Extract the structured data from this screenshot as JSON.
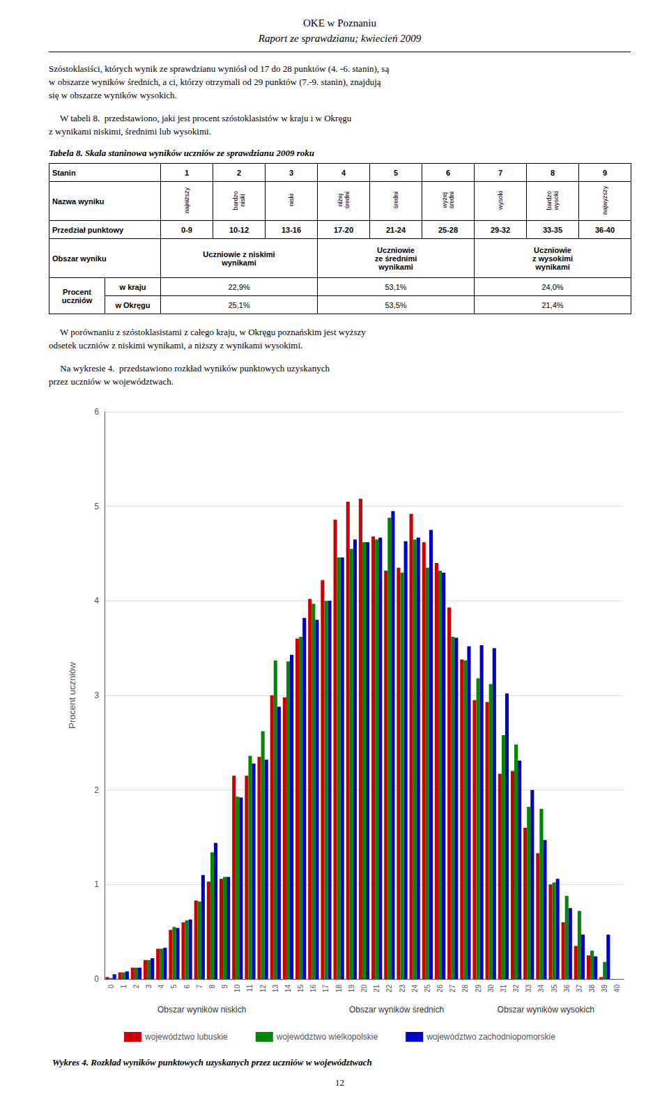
{
  "header": [
    "OKE w Poznaniu",
    "Raport ze sprawdzianu; kwiecień 2009"
  ],
  "paragraphs_before_table": [
    [
      "Szóstoklasiści, których wynik ze sprawdzianu wyniósł od 17 do 28 punktów (4. -6. stanin), są",
      "w obszarze wyników średnich, a ci, którzy otrzymali od 29 punktów (7.-9. stanin), znajdują",
      "się w obszarze wyników wysokich."
    ],
    [
      "     W tabeli 8.  przedstawiono, jaki jest procent szóstoklasistów w kraju i w Okręgu",
      "z wynikami niskimi, średnimi lub wysokimi."
    ]
  ],
  "table": {
    "title": "Tabela 8. Skala staninowa wyników uczniów ze sprawdzianu 2009 roku",
    "row_headers": [
      "Stanin",
      "Nazwa wyniku",
      "Przedział punktowy",
      "Obszar wyniku",
      "Procent\nuczniów"
    ],
    "stanin": [
      1,
      2,
      3,
      4,
      5,
      6,
      7,
      8,
      9
    ],
    "names": [
      "najniższy",
      "bardzo\nniski",
      "niski",
      "niżej\nśredni",
      "średni",
      "wyżej\nśredni",
      "wysoki",
      "bardzo\nwysoki",
      "najwyższy"
    ],
    "ranges": [
      "0-9",
      "10-12",
      "13-16",
      "17-20",
      "21-24",
      "25-28",
      "29-32",
      "33-35",
      "36-40"
    ],
    "areas": [
      "Uczniowie z niskimi\nwynikami",
      "Uczniowie\nze średnimi\nwynikami",
      "Uczniowie\nz wysokimi\nwynikami"
    ],
    "percent_rows": [
      {
        "label": "w kraju",
        "values": [
          "22,9%",
          "53,1%",
          "24,0%"
        ]
      },
      {
        "label": "w Okręgu",
        "values": [
          "25,1%",
          "53,5%",
          "21,4%"
        ]
      }
    ]
  },
  "paragraphs_after_table": [
    [
      "     W porównaniu z szóstoklasistami z całego kraju, w Okręgu poznańskim jest wyższy",
      "odsetek uczniów z niskimi wynikami, a niższy z wynikami wysokimi."
    ],
    [
      "     Na wykresie 4.  przedstawiono rozkład wyników punktowych uzyskanych",
      "przez uczniów w województwach."
    ]
  ],
  "page_number": "12",
  "chart_data": {
    "type": "bar",
    "title": "Wykres 4. Rozkład wyników punktowych uzyskanych przez uczniów w województwach",
    "y_label": "Procent uczniów",
    "annotations": [
      "Obszar wyników niskich",
      "Obszar wyników średnich",
      "Obszar wyników wysokich"
    ],
    "categories": [
      "0",
      "1",
      "2",
      "3",
      "4",
      "5",
      "6",
      "7",
      "8",
      "9",
      "10",
      "11",
      "12",
      "13",
      "14",
      "15",
      "16",
      "17",
      "18",
      "19",
      "20",
      "21",
      "22",
      "23",
      "24",
      "25",
      "26",
      "27",
      "28",
      "29",
      "30",
      "31",
      "32",
      "33",
      "34",
      "35",
      "36",
      "37",
      "38",
      "39",
      "40"
    ],
    "series": [
      {
        "name": "województwo lubuskie",
        "color": "#CC0000",
        "values": [
          0.02,
          0.07,
          0.12,
          0.2,
          0.32,
          0.52,
          0.6,
          0.83,
          1.03,
          1.06,
          2.15,
          2.15,
          2.35,
          3.0,
          2.98,
          3.6,
          4.02,
          4.22,
          4.86,
          5.05,
          5.08,
          4.68,
          4.32,
          4.35,
          4.92,
          4.62,
          4.4,
          3.93,
          3.38,
          2.95,
          2.93,
          2.17,
          2.2,
          1.6,
          1.33,
          1.0,
          0.6,
          0.35,
          0.25,
          0.02,
          0.0
        ]
      },
      {
        "name": "województwo wielkopolskie",
        "color": "#008800",
        "values": [
          0.01,
          0.07,
          0.12,
          0.2,
          0.32,
          0.55,
          0.62,
          0.82,
          1.34,
          1.08,
          1.93,
          2.36,
          2.62,
          3.37,
          3.36,
          3.62,
          3.97,
          4.0,
          4.46,
          4.55,
          4.62,
          4.65,
          4.88,
          4.3,
          4.65,
          4.35,
          4.32,
          3.62,
          3.37,
          3.18,
          3.12,
          2.58,
          2.48,
          1.82,
          1.8,
          1.02,
          0.88,
          0.72,
          0.3,
          0.18,
          0.0
        ]
      },
      {
        "name": "województwo zachodniopomorskie",
        "color": "#0000CC",
        "values": [
          0.05,
          0.08,
          0.12,
          0.22,
          0.33,
          0.54,
          0.63,
          1.1,
          1.44,
          1.08,
          1.92,
          2.28,
          2.32,
          2.88,
          3.43,
          3.82,
          3.8,
          4.0,
          4.46,
          4.65,
          4.62,
          4.67,
          4.95,
          4.63,
          4.67,
          4.75,
          4.3,
          3.61,
          3.52,
          3.53,
          3.5,
          3.02,
          2.31,
          2.0,
          1.47,
          1.06,
          0.75,
          0.47,
          0.24,
          0.47,
          0.0
        ]
      }
    ],
    "ylim": [
      0,
      6
    ],
    "yticks": [
      0,
      1,
      2,
      3,
      4,
      5,
      6
    ],
    "grid": true,
    "legend": "bottom"
  }
}
